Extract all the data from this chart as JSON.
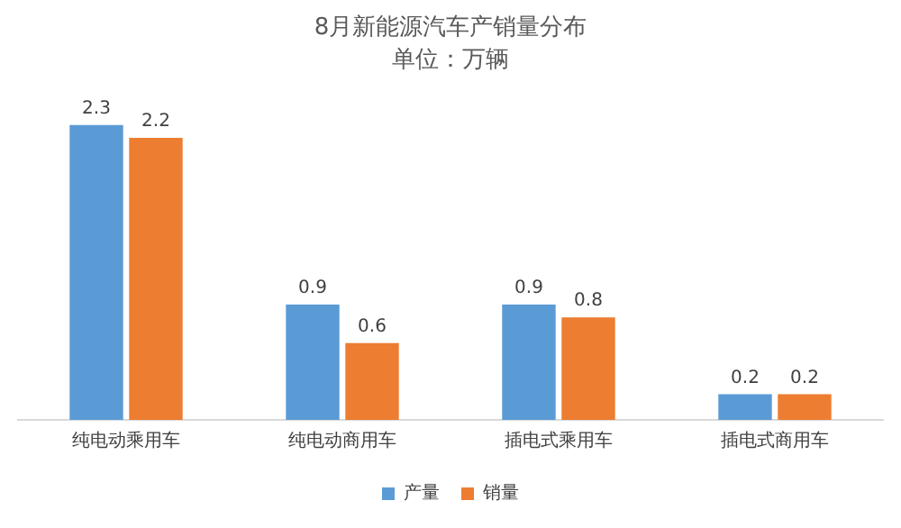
{
  "chart_data": {
    "type": "bar",
    "title": "8月新能源汽车产销量分布",
    "subtitle": "单位：万辆",
    "categories": [
      "纯电动乘用车",
      "纯电动商用车",
      "插电式乘用车",
      "插电式商用车"
    ],
    "series": [
      {
        "name": "产量",
        "color": "#5b9bd5",
        "values": [
          2.3,
          0.9,
          0.9,
          0.2
        ]
      },
      {
        "name": "销量",
        "color": "#ed7d31",
        "values": [
          2.2,
          0.6,
          0.8,
          0.2
        ]
      }
    ],
    "data_labels": true,
    "grid": false,
    "legend": "bottom"
  }
}
